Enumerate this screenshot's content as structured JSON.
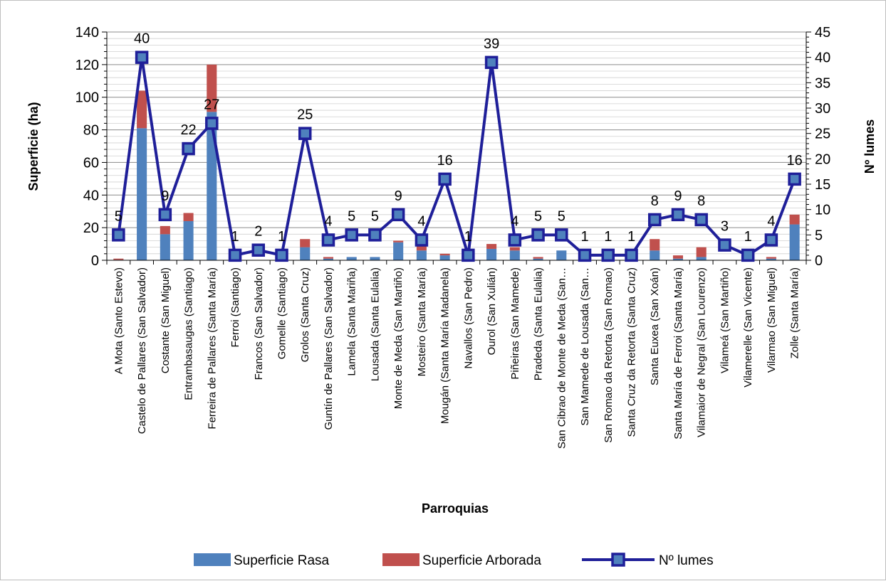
{
  "chart_data": {
    "type": "bar",
    "subtype": "stacked-bar-with-line-secondary-axis",
    "title": "",
    "xlabel": "Parroquias",
    "ylabel": "Superficie (ha)",
    "y2label": "Nº lumes",
    "ylim": [
      0,
      140
    ],
    "yticks": [
      0,
      20,
      40,
      60,
      80,
      100,
      120,
      140
    ],
    "y2lim": [
      0,
      45
    ],
    "y2ticks": [
      0,
      5,
      10,
      15,
      20,
      25,
      30,
      35,
      40,
      45
    ],
    "grid": true,
    "legend_position": "bottom",
    "categories": [
      "A Mota (Santo Estevo)",
      "Castelo de Pallares (San Salvador)",
      "Costante (San Miguel)",
      "Entrambasaugas (Santiago)",
      "Ferreira de Pallares (Santa María)",
      "Ferroi (Santiago)",
      "Francos (San Salvador)",
      "Gomelle (Santiago)",
      "Grolos (Santa Cruz)",
      "Guntín de Pallares (San Salvador)",
      "Lamela (Santa Mariña)",
      "Lousada (Santa Eulalia)",
      "Monte de Meda (San Martiño)",
      "Mosteiro (Santa María)",
      "Mougán (Santa María Madanela)",
      "Navallos (San Pedro)",
      "Ourol (San Xulián)",
      "Piñeiras (San Mamede)",
      "Pradeda (Santa Eulalia)",
      "San Cibrao de Monte de Meda (San…",
      "San Mamede de Lousada (San…",
      "San Romao da Retorta (San Romao)",
      "Santa Cruz da Retorta (Santa Cruz)",
      "Santa Euxea (San Xoán)",
      "Santa María de Ferroi (Santa María)",
      "Vilamaior de Negral (San Lourenzo)",
      "Vilameá (San Martiño)",
      "Vilamerelle (San Vicente)",
      "Vilarmao (San Miguel)",
      "Zolle (Santa María)"
    ],
    "series": [
      {
        "name": "Superficie Rasa",
        "type": "bar",
        "axis": "left",
        "color": "#4f81bd",
        "values": [
          0.3,
          81,
          16,
          24,
          91,
          0,
          0,
          0,
          8,
          1,
          2,
          2,
          11,
          6,
          3,
          0,
          7,
          6,
          1,
          6,
          0,
          0,
          0,
          6,
          1,
          2,
          0,
          0,
          1,
          22
        ]
      },
      {
        "name": "Superficie Arborada",
        "type": "bar",
        "axis": "left",
        "color": "#c0504d",
        "values": [
          0.7,
          23,
          5,
          5,
          29,
          0,
          0,
          0,
          5,
          1,
          0,
          0,
          1,
          3,
          1,
          0,
          3,
          2,
          1,
          0,
          0,
          0,
          0,
          7,
          2,
          6,
          0,
          0,
          1,
          6
        ]
      },
      {
        "name": "Nº lumes",
        "type": "line",
        "axis": "right",
        "color": "#1f1f99",
        "values": [
          5,
          40,
          9,
          22,
          27,
          1,
          2,
          1,
          25,
          4,
          5,
          5,
          9,
          4,
          16,
          1,
          39,
          4,
          5,
          5,
          1,
          1,
          1,
          8,
          9,
          8,
          3,
          1,
          4,
          16
        ]
      }
    ]
  }
}
